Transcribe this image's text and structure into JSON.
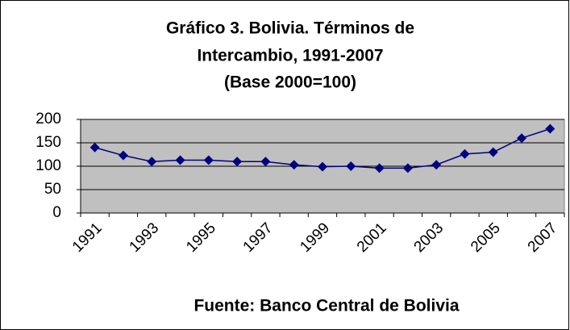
{
  "chart_data": {
    "type": "line",
    "title": [
      "Gráfico 3. Bolivia. Términos de",
      "Intercambio, 1991-2007",
      "(Base 2000=100)"
    ],
    "source": "Fuente: Banco Central de Bolivia",
    "categories": [
      "1991",
      null,
      "1993",
      null,
      "1995",
      null,
      "1997",
      null,
      "1999",
      null,
      "2001",
      null,
      "2003",
      null,
      "2005",
      null,
      "2007"
    ],
    "values": [
      140,
      123,
      110,
      113,
      113,
      110,
      110,
      103,
      99,
      100,
      96,
      96,
      103,
      126,
      130,
      160,
      180
    ],
    "color": "#000080",
    "ylim": [
      0,
      200
    ],
    "yticks": [
      0,
      50,
      100,
      150,
      200
    ],
    "grid": true
  }
}
